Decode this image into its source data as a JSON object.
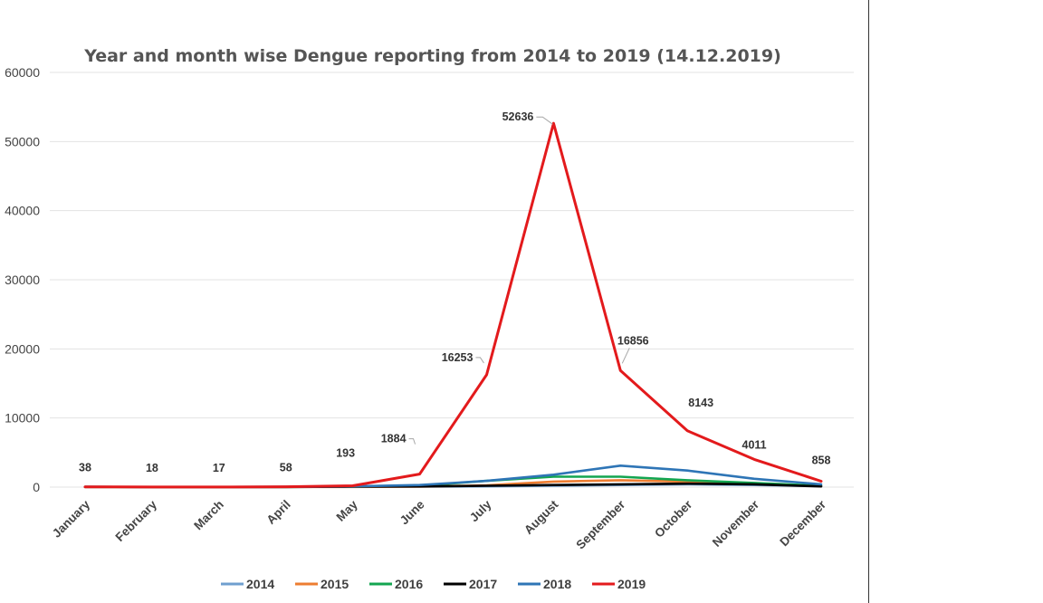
{
  "chart_data": {
    "type": "line",
    "title": "Year and month wise Dengue reporting from 2014 to 2019 (14.12.2019)",
    "xlabel": "",
    "ylabel": "",
    "ylim": [
      0,
      60000
    ],
    "yticks": [
      0,
      10000,
      20000,
      30000,
      40000,
      50000,
      60000
    ],
    "grid": true,
    "legend_position": "bottom",
    "categories": [
      "January",
      "February",
      "March",
      "April",
      "May",
      "June",
      "July",
      "August",
      "September",
      "October",
      "November",
      "December"
    ],
    "series": [
      {
        "name": "2014",
        "color": "#6f9fcf",
        "values": [
          30,
          20,
          20,
          30,
          50,
          60,
          100,
          200,
          300,
          400,
          300,
          150
        ]
      },
      {
        "name": "2015",
        "color": "#ed7d31",
        "values": [
          20,
          15,
          15,
          20,
          30,
          80,
          250,
          800,
          1000,
          800,
          500,
          150
        ]
      },
      {
        "name": "2016",
        "color": "#13a550",
        "values": [
          30,
          30,
          25,
          30,
          80,
          200,
          900,
          1500,
          1500,
          1000,
          600,
          200
        ]
      },
      {
        "name": "2017",
        "color": "#000000",
        "values": [
          40,
          30,
          30,
          30,
          60,
          100,
          200,
          300,
          400,
          500,
          400,
          100
        ]
      },
      {
        "name": "2018",
        "color": "#2e75b6",
        "values": [
          40,
          30,
          30,
          40,
          100,
          300,
          900,
          1800,
          3100,
          2400,
          1200,
          400
        ]
      },
      {
        "name": "2019",
        "color": "#e31a1c",
        "values": [
          38,
          18,
          17,
          58,
          193,
          1884,
          16253,
          52636,
          16856,
          8143,
          4011,
          858
        ]
      }
    ],
    "data_labels": {
      "series": "2019",
      "labels": [
        "38",
        "18",
        "17",
        "58",
        "193",
        "1884",
        "16253",
        "52636",
        "16856",
        "8143",
        "4011",
        "858"
      ]
    }
  }
}
